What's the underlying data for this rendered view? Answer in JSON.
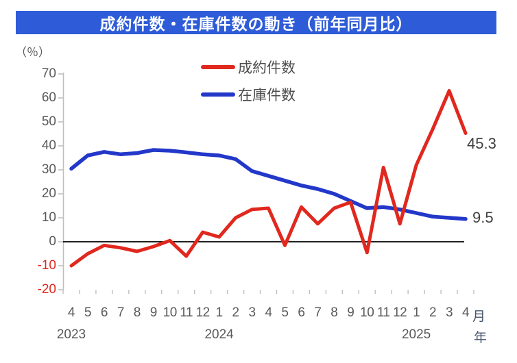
{
  "title_banner": {
    "text": "成約件数・在庫件数の動き（前年同月比）",
    "bg_color": "#2e5cd8",
    "text_color": "#ffffff"
  },
  "axis_unit_percent": "（％）",
  "month_unit": "月",
  "year_unit": "年",
  "legend": {
    "items": [
      {
        "label": "成約件数",
        "color": "#e0281e"
      },
      {
        "label": "在庫件数",
        "color": "#2338c9"
      }
    ]
  },
  "end_labels": {
    "contracts": "45.3",
    "inventory": "9.5"
  },
  "colors": {
    "banner": "#2e5cd8",
    "contracts_line": "#e0281e",
    "inventory_line": "#2338c9",
    "axis": "#bfbfbf",
    "zero_line": "#000000",
    "label_gray": "#595959",
    "negative_label": "#e0281e",
    "unit_label": "#44546a"
  },
  "chart_data": {
    "type": "line",
    "title": "成約件数・在庫件数の動き（前年同月比）",
    "ylabel": "（％）",
    "xlabel": "月 / 年",
    "ylim": [
      -20,
      70
    ],
    "grid": false,
    "legend_position": "top-center",
    "x_labels": [
      "4",
      "5",
      "6",
      "7",
      "8",
      "9",
      "10",
      "11",
      "12",
      "1",
      "2",
      "3",
      "4",
      "5",
      "6",
      "7",
      "8",
      "9",
      "10",
      "11",
      "12",
      "1",
      "2",
      "3",
      "4"
    ],
    "years": [
      {
        "label": "2023",
        "month_index": 0
      },
      {
        "label": "2024",
        "month_index": 9
      },
      {
        "label": "2025",
        "month_index": 21
      }
    ],
    "y_ticks": [
      {
        "label": "70",
        "value": 70
      },
      {
        "label": "60",
        "value": 60
      },
      {
        "label": "50",
        "value": 50
      },
      {
        "label": "40",
        "value": 40
      },
      {
        "label": "30",
        "value": 30
      },
      {
        "label": "20",
        "value": 20
      },
      {
        "label": "10",
        "value": 10
      },
      {
        "label": "0",
        "value": 0
      },
      {
        "label": "-10",
        "value": -10
      },
      {
        "label": "-20",
        "value": -20
      }
    ],
    "series": [
      {
        "name": "成約件数",
        "color": "#e0281e",
        "values": [
          -10,
          -5,
          -1.5,
          -2.5,
          -4,
          -2,
          0.5,
          -6,
          4,
          2,
          10,
          13.5,
          14,
          -1.5,
          14.5,
          7.5,
          14,
          16.5,
          -4.5,
          31,
          7.5,
          32,
          47,
          63,
          45.3
        ]
      },
      {
        "name": "在庫件数",
        "color": "#2338c9",
        "values": [
          30.5,
          36,
          37.5,
          36.5,
          37,
          38.3,
          38,
          37.3,
          36.5,
          36,
          34.5,
          29.5,
          27.5,
          25.5,
          23.5,
          22,
          20,
          17,
          14,
          14.5,
          13.5,
          12,
          10.5,
          10,
          9.5
        ]
      }
    ],
    "annotations": [
      {
        "series": "成約件数",
        "text": "45.3",
        "position": "end"
      },
      {
        "series": "在庫件数",
        "text": "9.5",
        "position": "end"
      }
    ]
  }
}
